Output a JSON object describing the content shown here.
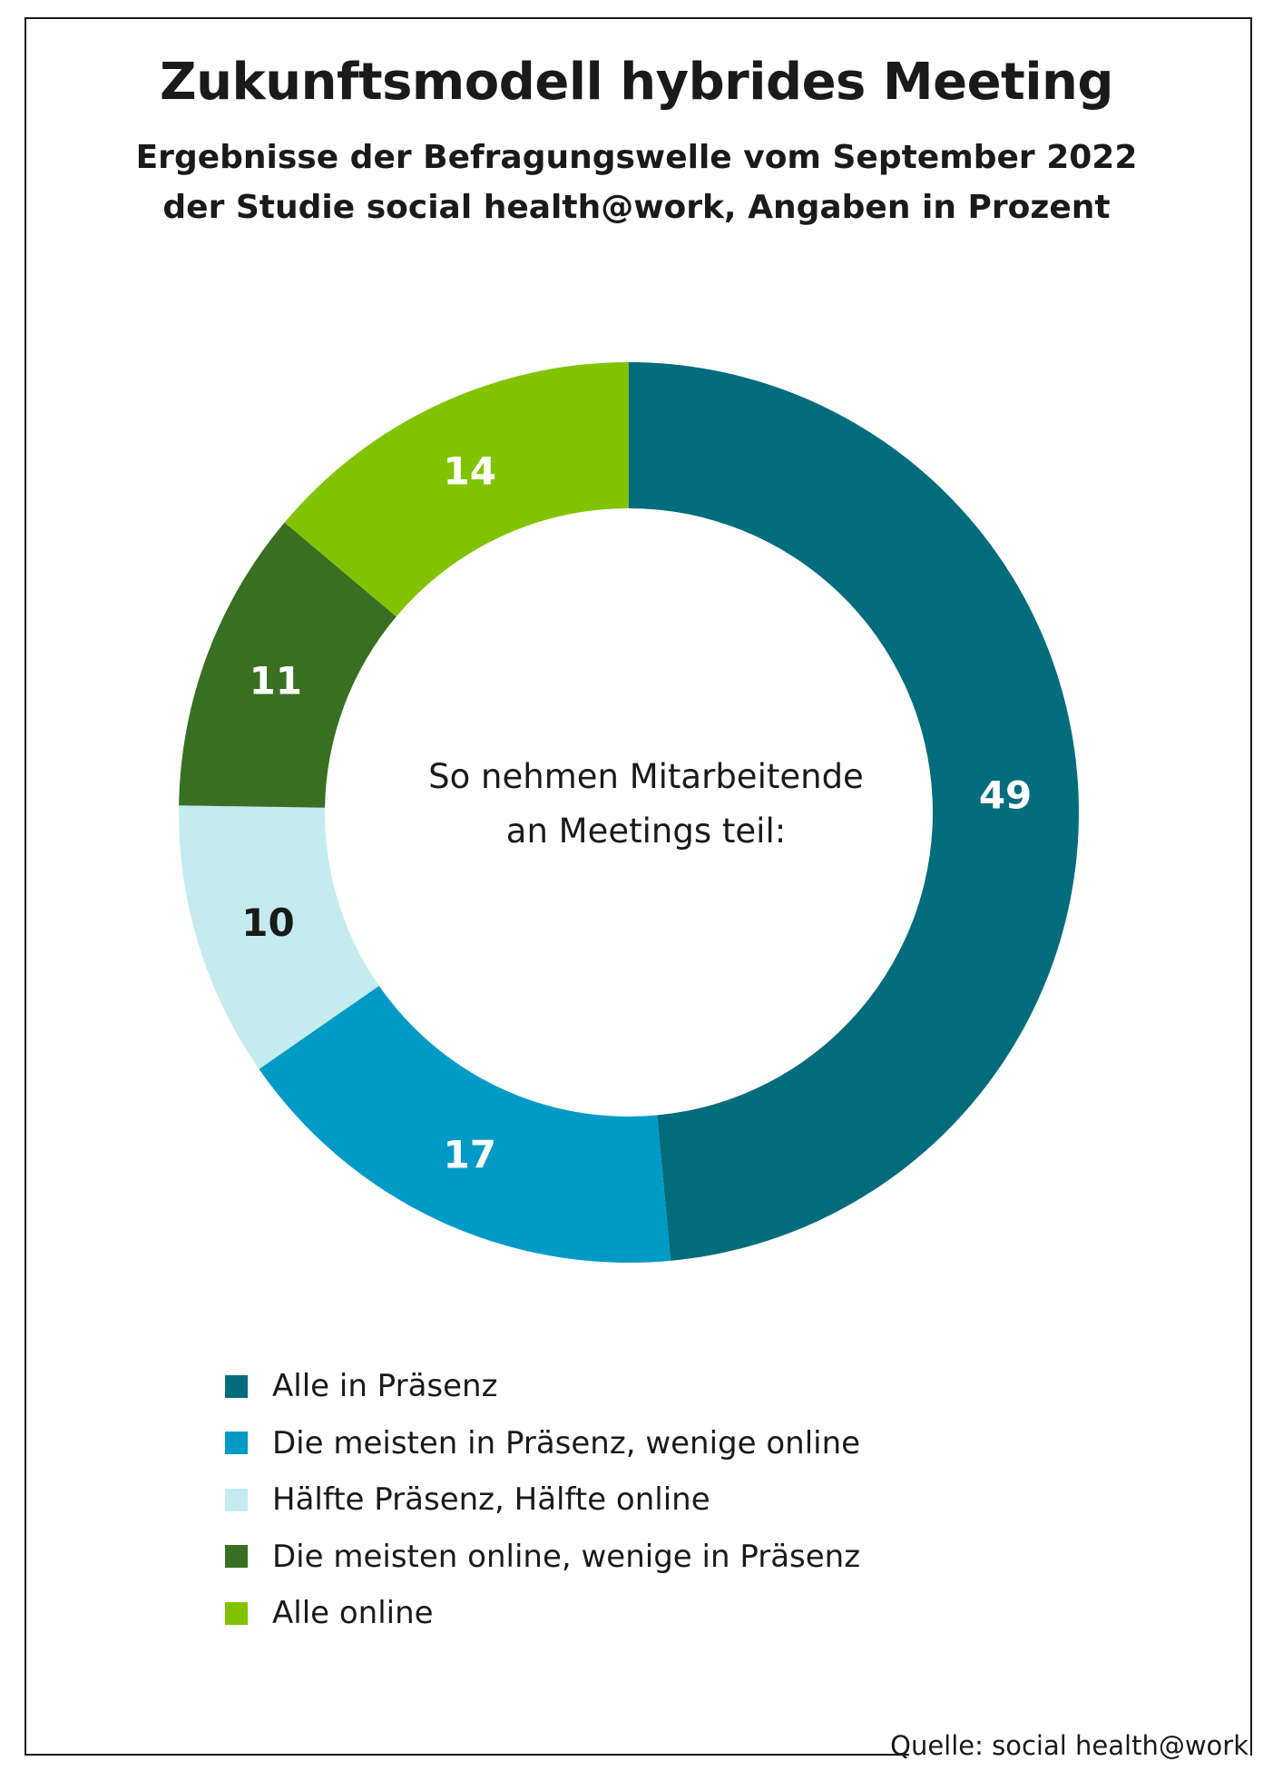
{
  "header": {
    "title": "Zukunftsmodell hybrides Meeting",
    "subtitle_line1": "Ergebnisse der Befragungswelle vom September 2022",
    "subtitle_line2": "der Studie social health@work, Angaben in Prozent"
  },
  "chart_data": {
    "type": "pie",
    "donut": true,
    "center_label_line1": "So nehmen Mitarbeitende",
    "center_label_line2": "an Meetings teil:",
    "categories": [
      "Alle in Präsenz",
      "Die meisten in Präsenz, wenige online",
      "Hälfte Präsenz, Hälfte online",
      "Die meisten online, wenige in Präsenz",
      "Alle online"
    ],
    "values": [
      49,
      17,
      10,
      11,
      14
    ],
    "colors": [
      "#006c7c",
      "#009ac6",
      "#c4ecee",
      "#386f22",
      "#82c300"
    ],
    "label_colors": [
      "#ffffff",
      "#ffffff",
      "#1a1a1a",
      "#ffffff",
      "#ffffff"
    ],
    "legend_placement": "bottom"
  },
  "footer": {
    "source": "Quelle: social health@work"
  }
}
